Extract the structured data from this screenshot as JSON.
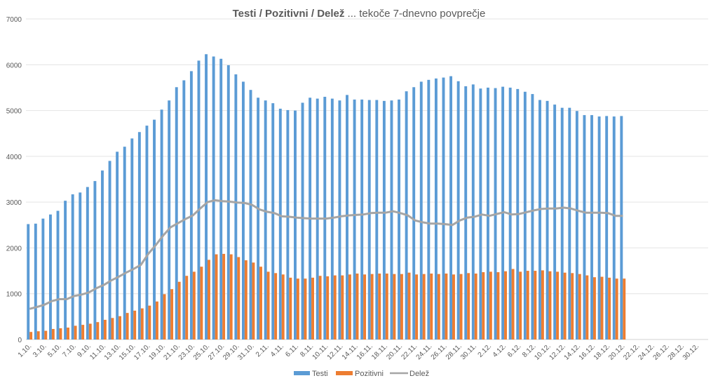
{
  "chart_data": {
    "type": "bar",
    "title_bold": "Testi / Pozitivni / Delež",
    "title_rest": " ... tekoče 7-dnevno povprečje",
    "xlabel": "",
    "ylabel": "",
    "ylim": [
      0,
      7000
    ],
    "yticks": [
      "0",
      "1000",
      "2000",
      "3000",
      "4000",
      "5000",
      "6000",
      "7000"
    ],
    "secondary_ylim_percent": [
      0,
      70
    ],
    "grid": true,
    "legend_position": "bottom",
    "categories_start": "1.10.",
    "tick_labels": [
      "1.10.",
      "3.10.",
      "5.10.",
      "7.10.",
      "9.10.",
      "11.10.",
      "13.10.",
      "15.10.",
      "17.10.",
      "19.10.",
      "21.10.",
      "23.10.",
      "25.10.",
      "27.10.",
      "29.10.",
      "31.10.",
      "2.11.",
      "4.11.",
      "6.11.",
      "8.11.",
      "10.11.",
      "12.11.",
      "14.11.",
      "16.11.",
      "18.11.",
      "20.11.",
      "22.11.",
      "24.11.",
      "26.11.",
      "28.11.",
      "30.11.",
      "2.12.",
      "4.12.",
      "6.12.",
      "8.12.",
      "10.12.",
      "12.12.",
      "14.12.",
      "16.12.",
      "18.12.",
      "20.12.",
      "22.12.",
      "24.12.",
      "26.12.",
      "28.12.",
      "30.12."
    ],
    "category_count": 92,
    "series": [
      {
        "name": "Testi",
        "kind": "bar",
        "color": "#5B9BD5",
        "values": [
          2520,
          2530,
          2640,
          2730,
          2810,
          3030,
          3170,
          3210,
          3330,
          3460,
          3690,
          3900,
          4100,
          4210,
          4390,
          4530,
          4670,
          4800,
          5020,
          5220,
          5510,
          5660,
          5860,
          6090,
          6230,
          6180,
          6130,
          5990,
          5790,
          5630,
          5450,
          5280,
          5220,
          5160,
          5040,
          5010,
          5000,
          5170,
          5280,
          5260,
          5300,
          5260,
          5220,
          5340,
          5240,
          5240,
          5230,
          5230,
          5210,
          5220,
          5240,
          5420,
          5510,
          5630,
          5670,
          5700,
          5720,
          5750,
          5640,
          5530,
          5570,
          5480,
          5500,
          5490,
          5520,
          5500,
          5470,
          5410,
          5360,
          5230,
          5210,
          5130,
          5060,
          5060,
          4990,
          4900,
          4900,
          4870,
          4880,
          4870,
          4880
        ]
      },
      {
        "name": "Pozitivni",
        "kind": "bar",
        "color": "#ED7D31",
        "values": [
          165,
          180,
          190,
          230,
          245,
          260,
          300,
          320,
          345,
          380,
          430,
          470,
          510,
          580,
          630,
          680,
          740,
          830,
          990,
          1100,
          1260,
          1390,
          1480,
          1590,
          1740,
          1860,
          1870,
          1860,
          1800,
          1730,
          1680,
          1590,
          1480,
          1450,
          1420,
          1350,
          1330,
          1330,
          1350,
          1390,
          1380,
          1400,
          1400,
          1420,
          1440,
          1420,
          1430,
          1440,
          1440,
          1430,
          1430,
          1460,
          1420,
          1430,
          1440,
          1430,
          1440,
          1420,
          1430,
          1450,
          1440,
          1470,
          1480,
          1470,
          1490,
          1540,
          1480,
          1500,
          1500,
          1510,
          1490,
          1480,
          1460,
          1450,
          1430,
          1400,
          1360,
          1370,
          1350,
          1330,
          1330
        ]
      },
      {
        "name": "Delež",
        "kind": "line",
        "color": "#A5A5A5",
        "unit": "%",
        "values": [
          6.7,
          7.1,
          7.6,
          8.4,
          8.8,
          8.8,
          9.5,
          9.8,
          10.3,
          11.2,
          11.9,
          12.9,
          13.7,
          14.6,
          15.4,
          16.3,
          18.7,
          20.6,
          22.7,
          24.5,
          25.4,
          26.3,
          27.1,
          28.6,
          30.0,
          30.4,
          30.2,
          30.1,
          29.9,
          29.8,
          29.4,
          28.4,
          27.9,
          27.6,
          26.9,
          26.8,
          26.6,
          26.5,
          26.4,
          26.4,
          26.4,
          26.6,
          26.9,
          27.1,
          27.2,
          27.3,
          27.6,
          27.7,
          27.7,
          28.0,
          27.6,
          27.1,
          26.0,
          25.6,
          25.3,
          25.3,
          25.2,
          25.0,
          26.0,
          26.6,
          26.8,
          27.3,
          27.0,
          27.4,
          27.8,
          27.3,
          27.4,
          27.8,
          28.2,
          28.5,
          28.6,
          28.6,
          28.8,
          28.6,
          28.1,
          27.7,
          27.7,
          27.7,
          27.6,
          27.0,
          27.0
        ]
      }
    ]
  }
}
